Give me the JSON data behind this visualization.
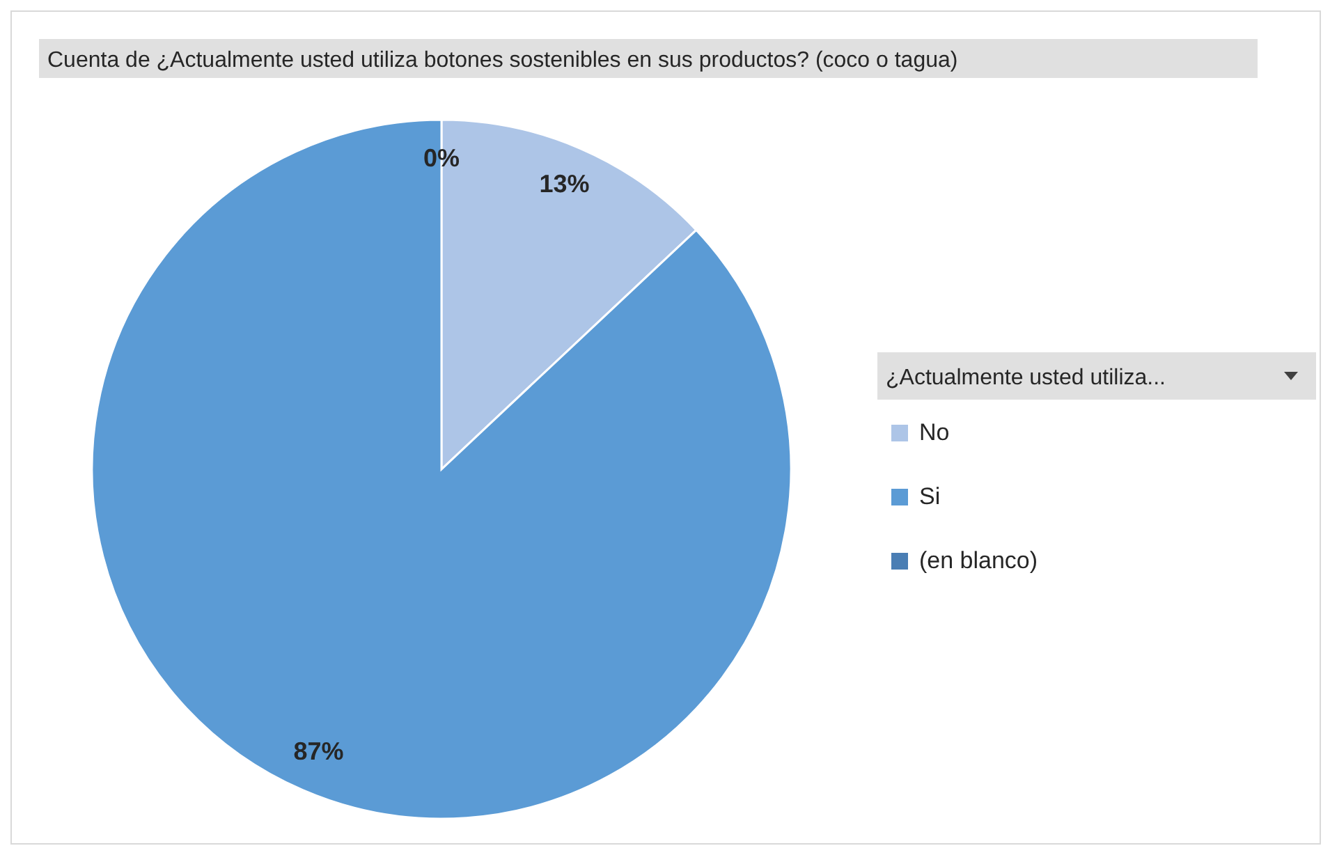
{
  "chart_data": {
    "type": "pie",
    "title": "Cuenta de ¿Actualmente usted utiliza botones sostenibles en sus productos? (coco o tagua)",
    "legend_title": "¿Actualmente usted utiliza...",
    "categories": [
      "No",
      "Si",
      "(en blanco)"
    ],
    "values": [
      13,
      87,
      0
    ],
    "colors": [
      "#adc5e7",
      "#5b9bd5",
      "#4a7eb4"
    ],
    "value_labels": [
      "13%",
      "87%",
      "0%"
    ],
    "legend": "right"
  }
}
